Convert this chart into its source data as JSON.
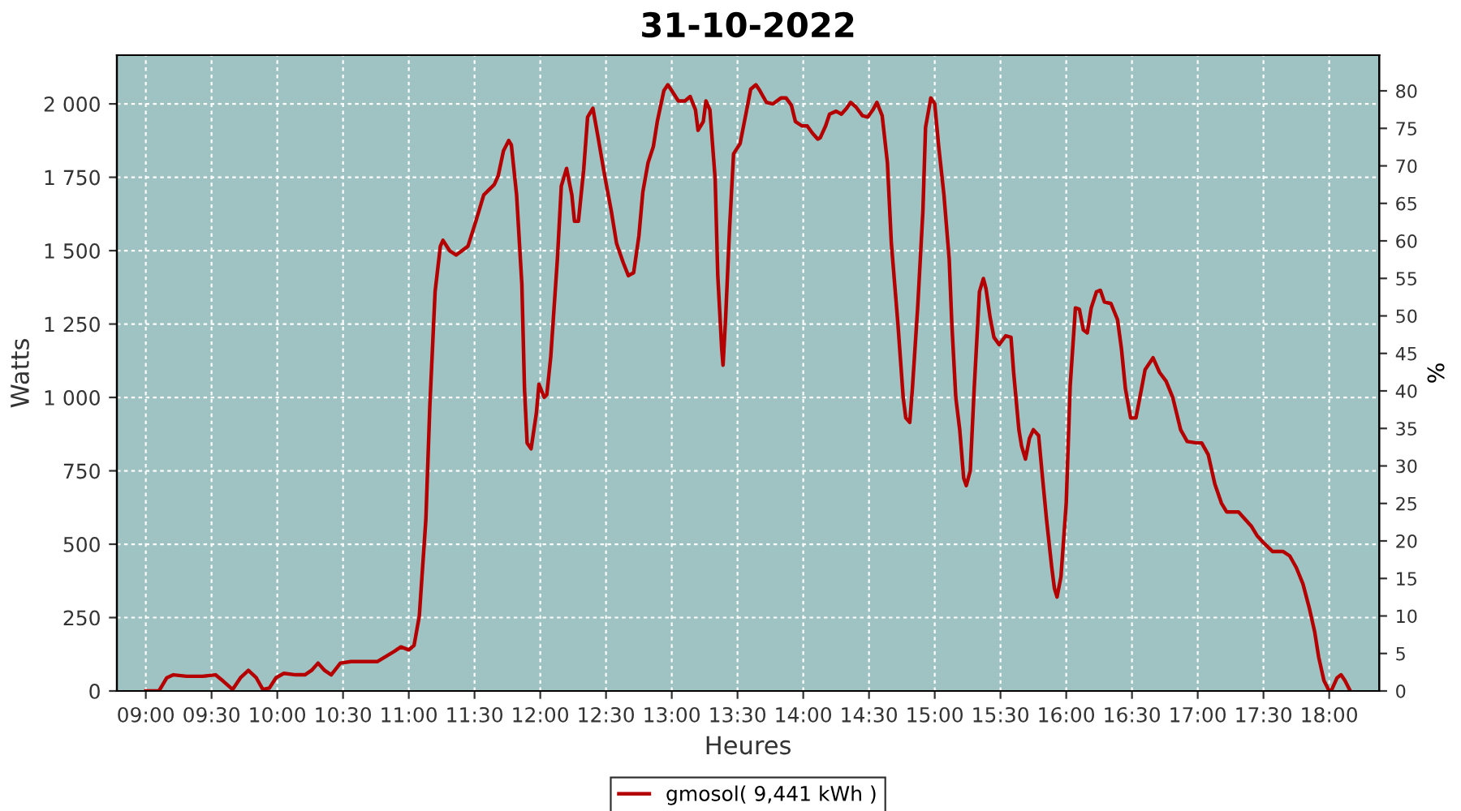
{
  "chart_data": {
    "type": "line",
    "title": "31-10-2022",
    "xlabel": "Heures",
    "ylabel": "Watts",
    "y2label": "%",
    "x": [
      9.0,
      9.1,
      9.16,
      9.21,
      9.31,
      9.43,
      9.53,
      9.59,
      9.66,
      9.72,
      9.78,
      9.84,
      9.89,
      9.94,
      9.99,
      10.05,
      10.14,
      10.21,
      10.26,
      10.31,
      10.36,
      10.41,
      10.48,
      10.56,
      10.76,
      10.89,
      10.94,
      11.0,
      11.04,
      11.08,
      11.13,
      11.16,
      11.2,
      11.24,
      11.26,
      11.31,
      11.36,
      11.45,
      11.51,
      11.57,
      11.65,
      11.68,
      11.72,
      11.76,
      11.78,
      11.82,
      11.86,
      11.88,
      11.9,
      11.93,
      11.97,
      11.99,
      12.03,
      12.05,
      12.08,
      12.13,
      12.16,
      12.2,
      12.24,
      12.26,
      12.29,
      12.33,
      12.36,
      12.4,
      12.44,
      12.49,
      12.54,
      12.58,
      12.63,
      12.67,
      12.71,
      12.75,
      12.78,
      12.82,
      12.86,
      12.89,
      12.94,
      12.97,
      13.0,
      13.05,
      13.1,
      13.14,
      13.18,
      13.2,
      13.24,
      13.26,
      13.29,
      13.33,
      13.35,
      13.38,
      13.39,
      13.41,
      13.44,
      13.47,
      13.52,
      13.57,
      13.6,
      13.64,
      13.67,
      13.72,
      13.77,
      13.83,
      13.87,
      13.91,
      13.94,
      13.99,
      14.03,
      14.07,
      14.11,
      14.13,
      14.17,
      14.2,
      14.25,
      14.29,
      14.33,
      14.36,
      14.4,
      14.45,
      14.49,
      14.53,
      14.56,
      14.6,
      14.64,
      14.67,
      14.72,
      14.76,
      14.78,
      14.81,
      14.83,
      14.87,
      14.91,
      14.93,
      14.97,
      15.0,
      15.03,
      15.07,
      15.11,
      15.13,
      15.16,
      15.19,
      15.22,
      15.24,
      15.27,
      15.3,
      15.34,
      15.37,
      15.39,
      15.42,
      15.45,
      15.49,
      15.54,
      15.58,
      15.6,
      15.64,
      15.66,
      15.69,
      15.72,
      15.75,
      15.79,
      15.82,
      15.85,
      15.89,
      15.91,
      15.93,
      15.96,
      16.0,
      16.03,
      16.07,
      16.1,
      16.13,
      16.16,
      16.19,
      16.23,
      16.26,
      16.29,
      16.34,
      16.39,
      16.42,
      16.45,
      16.49,
      16.53,
      16.56,
      16.6,
      16.66,
      16.71,
      16.76,
      16.81,
      16.87,
      16.92,
      16.99,
      17.03,
      17.08,
      17.13,
      17.18,
      17.22,
      17.31,
      17.36,
      17.41,
      17.45,
      17.5,
      17.57,
      17.65,
      17.7,
      17.75,
      17.8,
      17.85,
      17.89,
      17.92,
      17.96,
      18.0,
      18.02,
      18.06,
      18.09,
      18.12,
      18.16
    ],
    "series": [
      {
        "name": "gmosol( 9,441 kWh )",
        "color": "#b40000",
        "values": [
          0,
          0,
          45,
          55,
          50,
          50,
          55,
          33,
          5,
          45,
          70,
          45,
          5,
          10,
          45,
          60,
          55,
          55,
          70,
          95,
          70,
          55,
          95,
          100,
          100,
          135,
          150,
          140,
          155,
          255,
          585,
          970,
          1360,
          1515,
          1535,
          1500,
          1485,
          1515,
          1600,
          1690,
          1725,
          1755,
          1840,
          1875,
          1860,
          1690,
          1385,
          1030,
          845,
          825,
          945,
          1045,
          1000,
          1010,
          1140,
          1470,
          1720,
          1780,
          1690,
          1600,
          1600,
          1775,
          1955,
          1985,
          1885,
          1755,
          1635,
          1525,
          1460,
          1415,
          1425,
          1550,
          1700,
          1800,
          1855,
          1940,
          2045,
          2065,
          2045,
          2010,
          2010,
          2025,
          1980,
          1910,
          1940,
          2010,
          1980,
          1745,
          1415,
          1165,
          1110,
          1275,
          1580,
          1830,
          1865,
          1980,
          2050,
          2065,
          2045,
          2005,
          2000,
          2020,
          2020,
          1995,
          1940,
          1925,
          1925,
          1900,
          1880,
          1885,
          1925,
          1965,
          1975,
          1965,
          1985,
          2005,
          1990,
          1960,
          1955,
          1980,
          2005,
          1960,
          1800,
          1525,
          1250,
          1000,
          930,
          915,
          1030,
          1305,
          1635,
          1920,
          2020,
          2000,
          1855,
          1690,
          1470,
          1250,
          1000,
          890,
          725,
          700,
          750,
          1030,
          1360,
          1405,
          1370,
          1275,
          1205,
          1180,
          1210,
          1205,
          1085,
          890,
          835,
          790,
          860,
          890,
          870,
          725,
          585,
          420,
          350,
          320,
          390,
          640,
          1040,
          1305,
          1300,
          1230,
          1220,
          1305,
          1360,
          1365,
          1325,
          1320,
          1265,
          1165,
          1030,
          930,
          930,
          1000,
          1095,
          1135,
          1085,
          1055,
          1000,
          890,
          850,
          845,
          845,
          805,
          705,
          640,
          610,
          610,
          585,
          560,
          530,
          505,
          475,
          475,
          460,
          420,
          365,
          280,
          200,
          115,
          35,
          0,
          5,
          45,
          55,
          35,
          0
        ]
      }
    ],
    "xlim": [
      8.78,
      18.38
    ],
    "xticks": [
      {
        "value": 9,
        "label": "09:00"
      },
      {
        "value": 9.5,
        "label": "09:30"
      },
      {
        "value": 10,
        "label": "10:00"
      },
      {
        "value": 10.5,
        "label": "10:30"
      },
      {
        "value": 11,
        "label": "11:00"
      },
      {
        "value": 11.5,
        "label": "11:30"
      },
      {
        "value": 12,
        "label": "12:00"
      },
      {
        "value": 12.5,
        "label": "12:30"
      },
      {
        "value": 13,
        "label": "13:00"
      },
      {
        "value": 13.5,
        "label": "13:30"
      },
      {
        "value": 14,
        "label": "14:00"
      },
      {
        "value": 14.5,
        "label": "14:30"
      },
      {
        "value": 15,
        "label": "15:00"
      },
      {
        "value": 15.5,
        "label": "15:30"
      },
      {
        "value": 16,
        "label": "16:00"
      },
      {
        "value": 16.5,
        "label": "16:30"
      },
      {
        "value": 17,
        "label": "17:00"
      },
      {
        "value": 17.5,
        "label": "17:30"
      },
      {
        "value": 18,
        "label": "18:00"
      }
    ],
    "ylim": [
      0,
      2166
    ],
    "yticks": [
      0,
      250,
      500,
      750,
      {
        "value": 1000,
        "label": "1 000"
      },
      {
        "value": 1250,
        "label": "1 250"
      },
      {
        "value": 1500,
        "label": "1 500"
      },
      {
        "value": 1750,
        "label": "1 750"
      },
      {
        "value": 2000,
        "label": "2 000"
      }
    ],
    "y2lim": [
      0,
      84.76
    ],
    "y2ticks": [
      0,
      5,
      10,
      15,
      20,
      25,
      30,
      35,
      40,
      45,
      50,
      55,
      60,
      65,
      70,
      75,
      80
    ],
    "grid": true,
    "legend": "bottom",
    "marker": "none",
    "line_style": "solid"
  }
}
